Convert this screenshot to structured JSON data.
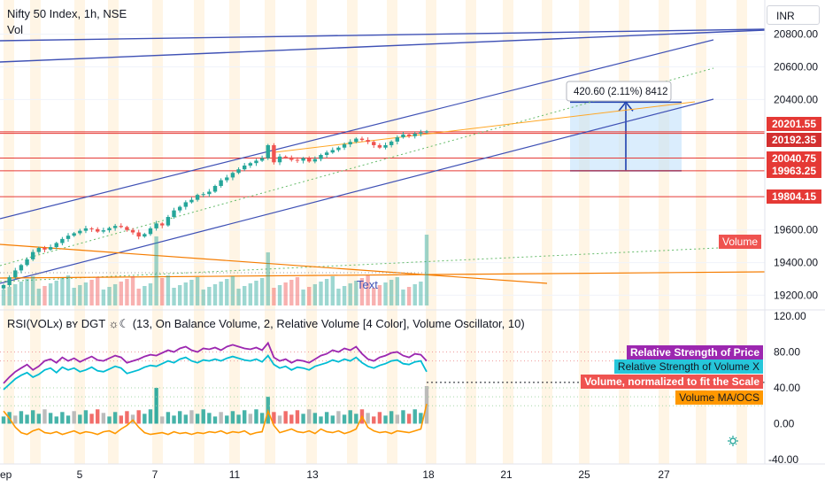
{
  "header": {
    "title": "Nifty 50 Index, 1h, NSE",
    "volume_label": "Vol",
    "currency": "INR",
    "indicator_title": "RSI(VOLx) ʙʏ DGT ☼☾ (13, On Balance Volume, 2, Relative Volume [4 Color], Volume Oscillator, 10)"
  },
  "colors": {
    "up": "#26a69a",
    "down": "#ef5350",
    "channel": "#3f51b5",
    "resistance": "#e53935",
    "orange": "#f57c00",
    "rsi_price": "#9c27b0",
    "rsi_volume": "#00bcd4",
    "range_box": "#bbdefb",
    "highlight_column": "#fff3e0"
  },
  "chart_data": [
    {
      "type": "candlestick",
      "name": "Nifty 50 Index, 1h, NSE",
      "x_axis": {
        "ticks": [
          "ep",
          "5",
          "7",
          "11",
          "13",
          "18",
          "21",
          "25",
          "27"
        ]
      },
      "y_axis": {
        "ticks": [
          20800,
          20600,
          20400,
          19600,
          19400,
          19200
        ],
        "range": [
          19110,
          21010
        ]
      },
      "price_labels": [
        {
          "text": "20201.55",
          "value": 20201.55,
          "color": "#e53935"
        },
        {
          "text": "20192.35",
          "value": 20192.35,
          "color": "#e53935"
        },
        {
          "text": "20040.75",
          "value": 20040.75,
          "color": "#e53935"
        },
        {
          "text": "19963.25",
          "value": 19963.25,
          "color": "#e53935"
        },
        {
          "text": "19804.15",
          "value": 19804.15,
          "color": "#e53935"
        }
      ],
      "horizontal_levels": [
        20201.55,
        20192.35,
        20040.75,
        19963.25,
        19804.15
      ],
      "measure": {
        "text": "420.60 (2.11%) 8412",
        "from": 19963.25,
        "to": 20383.85
      },
      "annotation_text": "Text",
      "volume_tag": "Volume",
      "close_series": [
        19262,
        19310,
        19352,
        19385,
        19420,
        19465,
        19490,
        19480,
        19495,
        19520,
        19545,
        19565,
        19580,
        19595,
        19610,
        19605,
        19590,
        19598,
        19612,
        19625,
        19618,
        19600,
        19585,
        19560,
        19575,
        19610,
        19640,
        19628,
        19680,
        19720,
        19742,
        19770,
        19785,
        19815,
        19820,
        19835,
        19870,
        19905,
        19922,
        19950,
        19972,
        19995,
        20010,
        20025,
        20040,
        20120,
        20015,
        20050,
        20045,
        20030,
        20025,
        20040,
        20020,
        20035,
        20060,
        20075,
        20090,
        20105,
        20125,
        20140,
        20160,
        20152,
        20140,
        20120,
        20105,
        20120,
        20142,
        20168,
        20185,
        20175,
        20190,
        20198,
        20205
      ]
    },
    {
      "type": "line",
      "name": "RSI(VOLx)",
      "y_axis": {
        "ticks": [
          120,
          80,
          40,
          0,
          -40
        ],
        "range": [
          -45,
          125
        ]
      },
      "legend": [
        {
          "text": "Relative Strength of Price",
          "color": "#9c27b0"
        },
        {
          "text": "Relative Strength of Volume X",
          "color": "#00bcd4"
        },
        {
          "text": "Volume, normalized to fit the Scale",
          "color": "#ef5350"
        },
        {
          "text": "Volume MA/OCS",
          "color": "#ff9800"
        }
      ],
      "series": [
        {
          "name": "Relative Strength of Price",
          "values": [
            45,
            52,
            58,
            62,
            66,
            60,
            64,
            70,
            72,
            68,
            74,
            70,
            73,
            69,
            72,
            75,
            71,
            70,
            73,
            76,
            74,
            68,
            70,
            72,
            75,
            77,
            76,
            79,
            82,
            80,
            84,
            86,
            82,
            80,
            84,
            83,
            85,
            82,
            86,
            88,
            86,
            84,
            83,
            85,
            82,
            90,
            74,
            70,
            72,
            68,
            71,
            70,
            68,
            72,
            76,
            78,
            82,
            80,
            84,
            82,
            86,
            78,
            72,
            70,
            74,
            76,
            79,
            80,
            76,
            74,
            78,
            77,
            70
          ]
        },
        {
          "name": "Relative Strength of Volume X",
          "values": [
            38,
            44,
            50,
            54,
            57,
            52,
            55,
            60,
            62,
            57,
            63,
            60,
            62,
            58,
            60,
            63,
            59,
            58,
            61,
            64,
            62,
            56,
            58,
            60,
            63,
            65,
            64,
            67,
            70,
            68,
            72,
            74,
            70,
            68,
            71,
            70,
            72,
            70,
            73,
            75,
            73,
            71,
            70,
            72,
            69,
            76,
            66,
            62,
            64,
            60,
            63,
            62,
            60,
            64,
            66,
            68,
            71,
            69,
            72,
            70,
            74,
            68,
            64,
            62,
            65,
            67,
            70,
            71,
            67,
            66,
            69,
            70,
            58
          ]
        },
        {
          "name": "Volume MA/OCS",
          "values": [
            14,
            6,
            -4,
            -10,
            -12,
            -8,
            -6,
            -10,
            -11,
            -9,
            -12,
            -10,
            -8,
            -11,
            -9,
            -10,
            -12,
            -9,
            -8,
            -11,
            -6,
            -2,
            4,
            -4,
            -10,
            -12,
            -11,
            -10,
            -12,
            -9,
            -11,
            -10,
            -12,
            -10,
            -11,
            -9,
            -10,
            -8,
            -11,
            -9,
            -10,
            -8,
            -12,
            -10,
            -9,
            14,
            -2,
            -10,
            -8,
            -6,
            -9,
            -10,
            -8,
            -11,
            -6,
            -9,
            -10,
            -8,
            -11,
            -9,
            -6,
            8,
            -4,
            -8,
            -10,
            -9,
            -11,
            -8,
            -9,
            -10,
            -8,
            -6,
            22
          ]
        }
      ]
    }
  ]
}
